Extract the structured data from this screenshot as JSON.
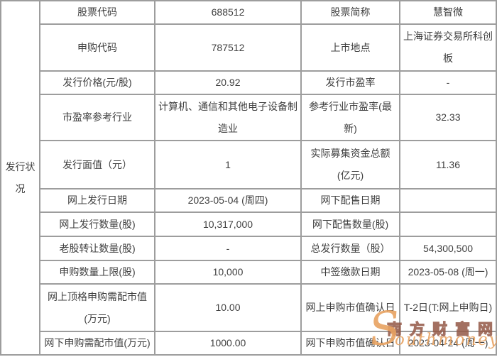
{
  "table": {
    "side_header": "发行状况",
    "rows": [
      {
        "c1": "股票代码",
        "c2": "688512",
        "c3": "股票简称",
        "c4": "慧智微"
      },
      {
        "c1": "申购代码",
        "c2": "787512",
        "c3": "上市地点",
        "c4": "上海证券交易所科创板"
      },
      {
        "c1": "发行价格(元/股)",
        "c2": "20.92",
        "c3": "发行市盈率",
        "c4": "-"
      },
      {
        "c1": "市盈率参考行业",
        "c2": "计算机、通信和其他电子设备制造业",
        "c3": "参考行业市盈率(最新)",
        "c4": "32.33"
      },
      {
        "c1": "发行面值（元）",
        "c2": "1",
        "c3": "实际募集资金总额(亿元)",
        "c4": "11.36"
      },
      {
        "c1": "网上发行日期",
        "c2": "2023-05-04 (周四)",
        "c3": "网下配售日期",
        "c4": ""
      },
      {
        "c1": "网上发行数量(股)",
        "c2": "10,317,000",
        "c3": "网下配售数量(股)",
        "c4": ""
      },
      {
        "c1": "老股转让数量(股)",
        "c2": "-",
        "c3": "总发行数量（股）",
        "c4": "54,300,500"
      },
      {
        "c1": "申购数量上限(股)",
        "c2": "10,000",
        "c3": "中签缴款日期",
        "c4": "2023-05-08 (周一)"
      },
      {
        "c1": "网上顶格申购需配市值(万元)",
        "c2": "10.00",
        "c3": "网上申购市值确认日",
        "c4": "T-2日(T:网上申购日)"
      },
      {
        "c1": "网下申购需配市值(万元)",
        "c2": "1000.00",
        "c3": "网下申购市值确认日",
        "c4": "2023-04-24 (周一)"
      }
    ]
  },
  "watermark": {
    "brand": "南方财富网",
    "script_initial": "S",
    "script_rest": "outhmoney.com"
  },
  "colors": {
    "table_border": "#9d9d9d",
    "table_text": "#404040",
    "watermark_outline": "#945846",
    "watermark_script": "#e8a261",
    "background": "#ffffff"
  }
}
